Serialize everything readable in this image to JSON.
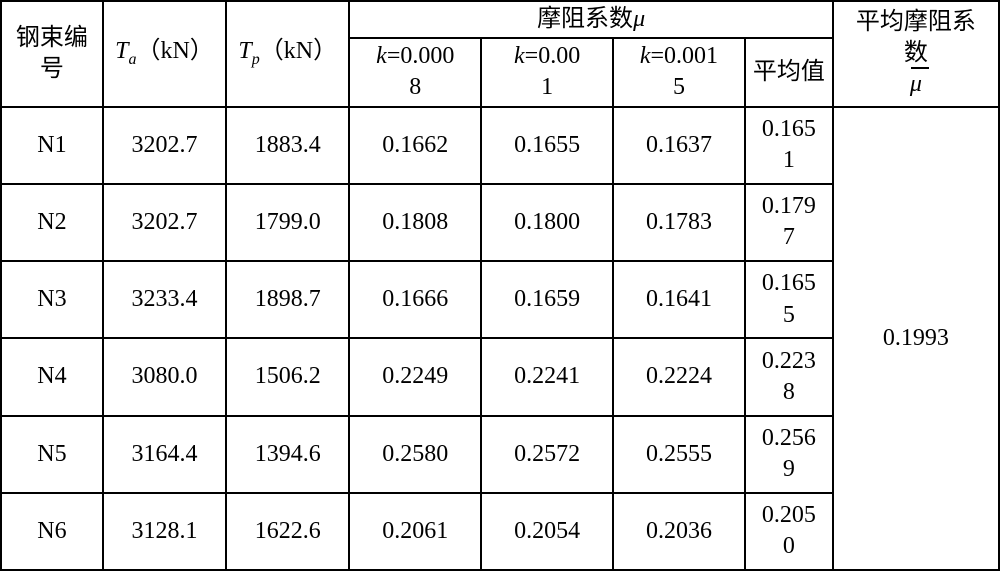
{
  "headers": {
    "tendon_id": "钢束编号",
    "ta_label_prefix": "T",
    "ta_sub": "a",
    "ta_unit": "（kN）",
    "tp_label_prefix": "T",
    "tp_sub": "p",
    "tp_unit": "（kN）",
    "mu_group": "摩阻系数",
    "mu_symbol": "μ",
    "k1_prefix": "k",
    "k1_eq": "=0.000",
    "k1_line2": "8",
    "k2_prefix": "k",
    "k2_eq": "=0.00",
    "k2_line2": "1",
    "k3_prefix": "k",
    "k3_eq": "=0.001",
    "k3_line2": "5",
    "avg": "平均值",
    "mubar_line1": "平均摩阻系",
    "mubar_line2": "数",
    "mubar_symbol": "μ"
  },
  "rows": [
    {
      "id": "N1",
      "ta": "3202.7",
      "tp": "1883.4",
      "k1": "0.1662",
      "k2": "0.1655",
      "k3": "0.1637",
      "avg_l1": "0.165",
      "avg_l2": "1"
    },
    {
      "id": "N2",
      "ta": "3202.7",
      "tp": "1799.0",
      "k1": "0.1808",
      "k2": "0.1800",
      "k3": "0.1783",
      "avg_l1": "0.179",
      "avg_l2": "7"
    },
    {
      "id": "N3",
      "ta": "3233.4",
      "tp": "1898.7",
      "k1": "0.1666",
      "k2": "0.1659",
      "k3": "0.1641",
      "avg_l1": "0.165",
      "avg_l2": "5"
    },
    {
      "id": "N4",
      "ta": "3080.0",
      "tp": "1506.2",
      "k1": "0.2249",
      "k2": "0.2241",
      "k3": "0.2224",
      "avg_l1": "0.223",
      "avg_l2": "8"
    },
    {
      "id": "N5",
      "ta": "3164.4",
      "tp": "1394.6",
      "k1": "0.2580",
      "k2": "0.2572",
      "k3": "0.2555",
      "avg_l1": "0.256",
      "avg_l2": "9"
    },
    {
      "id": "N6",
      "ta": "3128.1",
      "tp": "1622.6",
      "k1": "0.2061",
      "k2": "0.2054",
      "k3": "0.2036",
      "avg_l1": "0.205",
      "avg_l2": "0"
    }
  ],
  "overall_avg": "0.1993"
}
